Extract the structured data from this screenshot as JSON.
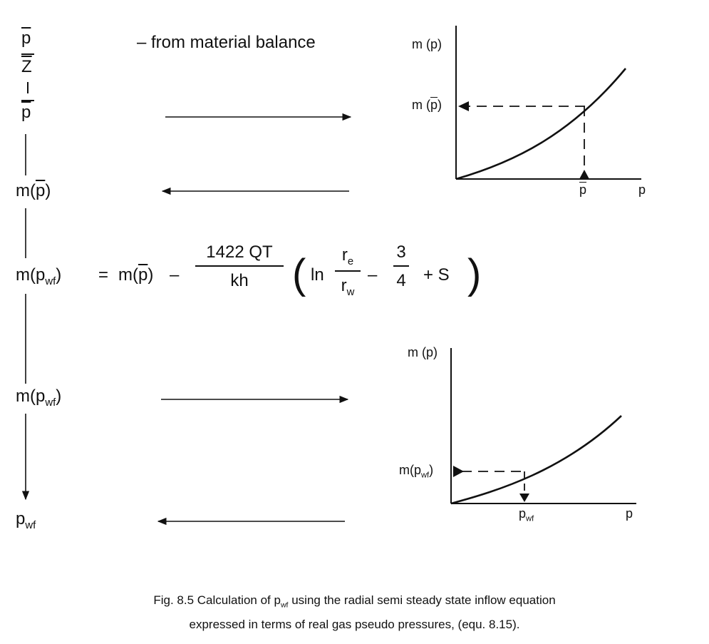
{
  "flow": {
    "p_bar": "p",
    "Z": "Z",
    "dash_label": "–  from material balance",
    "m_pbar": {
      "m": "m(",
      "p": "p",
      "close": ")"
    },
    "m_pwf_step": {
      "m": "m(p",
      "sub": "wf",
      "close": ")"
    },
    "pwf_final": {
      "p": "p",
      "sub": "wf"
    }
  },
  "equation": {
    "lhs": {
      "m": "m(p",
      "sub": "wf",
      "close": ")"
    },
    "equals": "=",
    "rhs_m": {
      "m": "m(",
      "p": "p",
      "close": ")"
    },
    "minus": "–",
    "coef_num": "1422 QT",
    "coef_den": "kh",
    "open_paren": "(",
    "ln": "ln",
    "re": {
      "r": "r",
      "sub": "e"
    },
    "rw": {
      "r": "r",
      "sub": "w"
    },
    "minus2": "–",
    "three": "3",
    "four": "4",
    "plus_s": "+  S",
    "close_paren": ")"
  },
  "chart_top": {
    "ylabel": "m (p)",
    "y_marker": {
      "m": "m (",
      "p": "p",
      "close": ")"
    },
    "x_marker": "p",
    "xlabel": "p"
  },
  "chart_bottom": {
    "ylabel": "m (p)",
    "y_marker": {
      "m": "m(p",
      "sub": "wf",
      "close": ")"
    },
    "x_marker": {
      "p": "p",
      "sub": "wf"
    },
    "xlabel": "p"
  },
  "caption": {
    "line1_a": "Fig. 8.5  Calculation of p",
    "line1_sub": "wf",
    "line1_b": " using the radial semi steady state inflow equation",
    "line2": "expressed in terms of real gas pseudo pressures, (equ. 8.15)."
  }
}
